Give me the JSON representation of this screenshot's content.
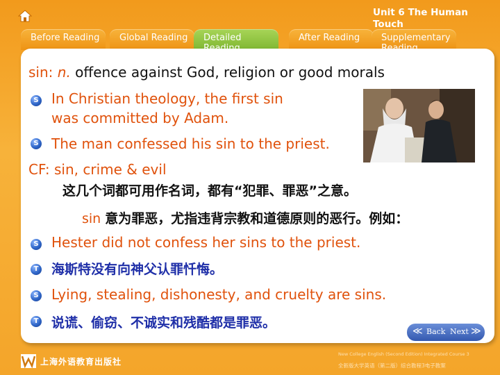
{
  "unit_title": "Unit 6 The Human Touch",
  "tabs": [
    {
      "label": "Before Reading",
      "active": false
    },
    {
      "label": "Global Reading",
      "active": false
    },
    {
      "label": "Detailed Reading",
      "active": true
    },
    {
      "label": "After Reading",
      "active": false
    },
    {
      "label": "Supplementary Reading",
      "active": false
    }
  ],
  "definition": {
    "word": "sin",
    "sep": ": ",
    "pos": "n.",
    "meaning": "offence against God, religion or good morals"
  },
  "examples": [
    {
      "marker": "S",
      "text_line1": "In Christian theology, the first sin",
      "text_line2": "was committed by Adam."
    },
    {
      "marker": "S",
      "text": "The man confessed his sin to the priest."
    }
  ],
  "cf": {
    "label": "CF: sin, crime & evil",
    "note_cn": "这几个词都可用作名词，都有“犯罪、罪恶”之意。",
    "sin_word": "sin",
    "sin_note_cn": "意为罪恶，尤指违背宗教和道德原则的恶行。例如："
  },
  "more_examples": [
    {
      "marker": "S",
      "text": "Hester did not confess her sins to the priest."
    },
    {
      "marker": "T",
      "text": "海斯特没有向神父认罪忏悔。"
    },
    {
      "marker": "S",
      "text": "Lying, stealing, dishonesty, and cruelty are sins."
    },
    {
      "marker": "T",
      "text": "说谎、偷窃、不诚实和残酷都是罪恶。"
    }
  ],
  "nav": {
    "back": "Back",
    "next": "Next"
  },
  "footer": {
    "publisher": "上海外语教育出版社",
    "course_en": "New College English (Second Edition) Integrated Course 3",
    "course_cn": "全新版大学英语（第二版）综合教程3电子教案"
  },
  "colors": {
    "orange_text": "#e0520c",
    "blue_cn": "#1f2fa8",
    "active_tab": "#8cc63f"
  }
}
